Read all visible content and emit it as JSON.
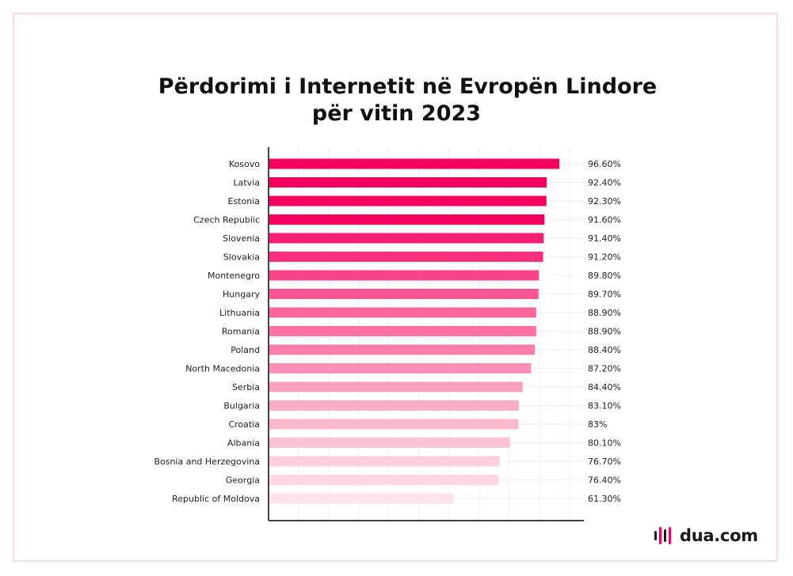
{
  "chart_data": {
    "type": "bar",
    "orientation": "horizontal",
    "title_line1": "Përdorimi i Internetit në Evropën Lindore",
    "title_line2": "për vitin 2023",
    "categories": [
      "Kosovo",
      "Latvia",
      "Estonia",
      "Czech Republic",
      "Slovenia",
      "Slovakia",
      "Montenegro",
      "Hungary",
      "Lithuania",
      "Romania",
      "Poland",
      "North Macedonia",
      "Serbia",
      "Bulgaria",
      "Croatia",
      "Albania",
      "Bosnia and Herzegovina",
      "Georgia",
      "Republic of Moldova"
    ],
    "values": [
      96.6,
      92.4,
      92.3,
      91.6,
      91.4,
      91.2,
      89.8,
      89.7,
      88.9,
      88.9,
      88.4,
      87.2,
      84.4,
      83.1,
      83,
      80.1,
      76.7,
      76.4,
      61.3
    ],
    "value_labels": [
      "96.60%",
      "92.40%",
      "92.30%",
      "91.60%",
      "91.40%",
      "91.20%",
      "89.80%",
      "89.70%",
      "88.90%",
      "88.90%",
      "88.40%",
      "87.20%",
      "84.40%",
      "83.10%",
      "83%",
      "80.10%",
      "76.70%",
      "76.40%",
      "61.30%"
    ],
    "bar_colors": [
      "#f4005f",
      "#f4005f",
      "#f4005f",
      "#f4005f",
      "#f81e73",
      "#f8307e",
      "#fa4489",
      "#fa5693",
      "#fb669c",
      "#fb72a3",
      "#fb7eaa",
      "#fc8fb5",
      "#fc9fbe",
      "#fdadc7",
      "#fdb8ce",
      "#fdc3d5",
      "#fecfdd",
      "#fed9e4",
      "#ffe4eb"
    ],
    "xlim": [
      0,
      100
    ],
    "grid": true,
    "legend": "none"
  },
  "brand": {
    "logo_text": "dua.com",
    "logo_bar_colors": [
      "#1a1a1a",
      "#f4005f",
      "#1a1a1a",
      "#f4005f"
    ]
  },
  "colors": {
    "accent": "#f4005f",
    "frame": "#f6dbe2"
  }
}
